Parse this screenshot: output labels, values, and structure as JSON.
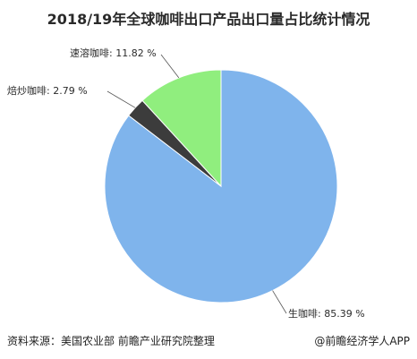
{
  "chart_data": {
    "type": "pie",
    "title": "2018/19年全球咖啡出口产品出口量占比统计情况",
    "slices": [
      {
        "name": "生咖啡",
        "value": 85.39,
        "label": "生咖啡: 85.39 %",
        "color": "#7fb4ec"
      },
      {
        "name": "焙炒咖啡",
        "value": 2.79,
        "label": "焙炒咖啡: 2.79 %",
        "color": "#3c3c3c"
      },
      {
        "name": "速溶咖啡",
        "value": 11.82,
        "label": "速溶咖啡: 11.82 %",
        "color": "#90ee7e"
      }
    ],
    "start": "12 o'clock",
    "direction": "clockwise"
  },
  "footer": {
    "source": "资料来源：美国农业部 前瞻产业研究院整理",
    "brand": "@前瞻经济学人APP"
  }
}
